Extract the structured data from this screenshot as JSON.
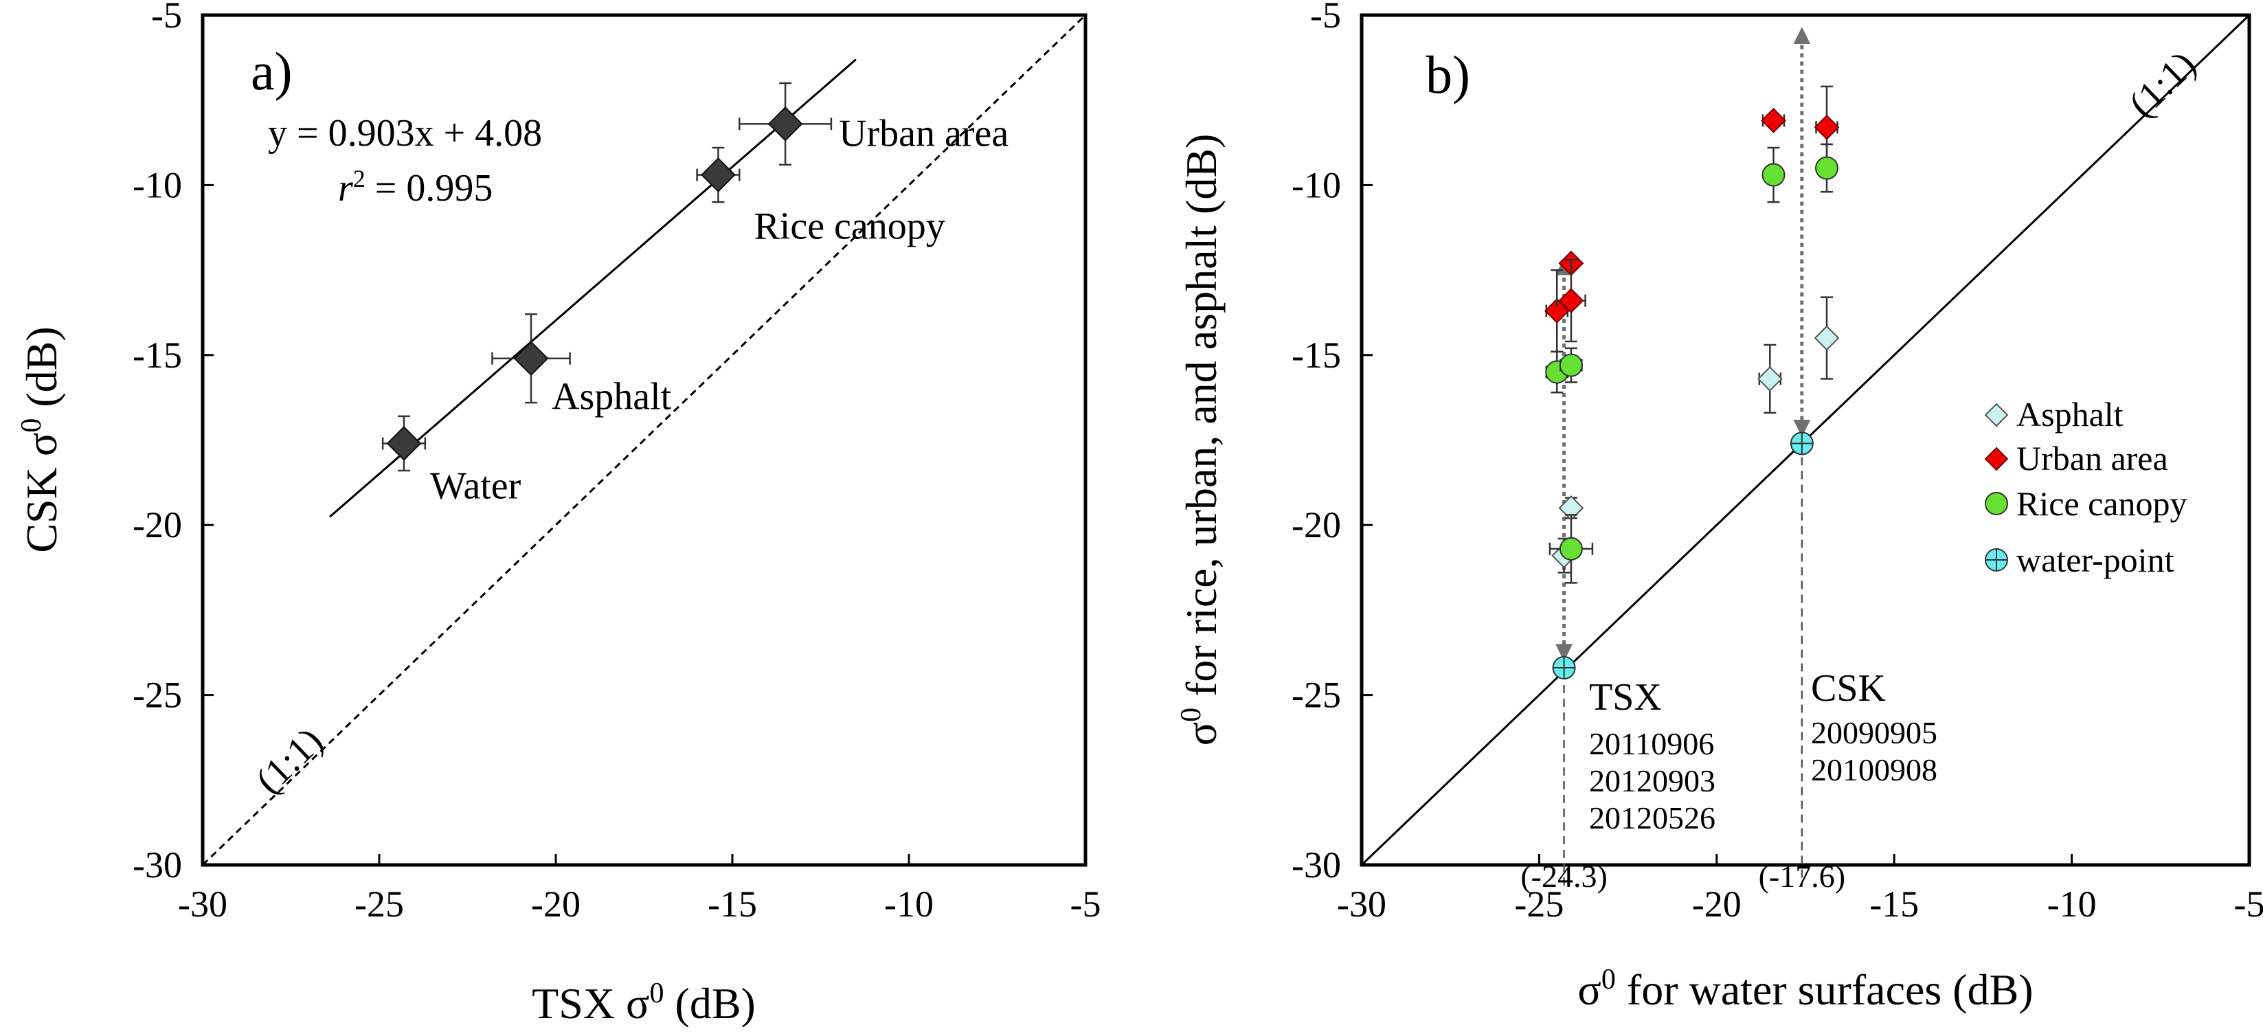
{
  "chart_data": [
    {
      "type": "scatter",
      "panel_label": "a)",
      "xlabel_main": "TSX σ",
      "xlabel_sup": "0",
      "xlabel_unit": " (dB)",
      "ylabel_main": "CSK σ",
      "ylabel_sup": "0",
      "ylabel_unit": "  (dB)",
      "xlim": [
        -30,
        -5
      ],
      "ylim": [
        -30,
        -5
      ],
      "xticks": [
        -30,
        -25,
        -20,
        -15,
        -10,
        -5
      ],
      "yticks": [
        -30,
        -25,
        -20,
        -15,
        -10,
        -5
      ],
      "xtick_labels": [
        "-30",
        "-25",
        "-20",
        "-15",
        "-10",
        "-5"
      ],
      "ytick_labels": [
        "-30",
        "-25",
        "-20",
        "-15",
        "-10",
        "-5"
      ],
      "points": [
        {
          "label": "Water",
          "x": -24.3,
          "y": -17.6,
          "xerr": 0.6,
          "yerr": 0.8
        },
        {
          "label": "Asphalt",
          "x": -20.7,
          "y": -15.1,
          "xerr": 1.1,
          "yerr": 1.3
        },
        {
          "label": "Rice canopy",
          "x": -15.4,
          "y": -9.7,
          "xerr": 0.6,
          "yerr": 0.8
        },
        {
          "label": "Urban area",
          "x": -13.5,
          "y": -8.2,
          "xerr": 1.3,
          "yerr": 1.2
        }
      ],
      "regression": {
        "slope": 0.903,
        "intercept": 4.08,
        "x_from": -26.4,
        "x_to": -11.5
      },
      "equation_text": "y = 0.903x + 4.08",
      "r2_var": "r",
      "r2_sup": "2",
      "r2_rest": " = 0.995",
      "one_to_one_label": "(1:1)",
      "grid": false
    },
    {
      "type": "scatter",
      "panel_label": "b)",
      "xlabel_main": "σ",
      "xlabel_sup": "0",
      "xlabel_unit": " for water surfaces (dB)",
      "ylabel_main": "σ",
      "ylabel_sup": "0",
      "ylabel_unit": " for rice, urban, and asphalt (dB)",
      "xlim": [
        -30,
        -5
      ],
      "ylim": [
        -30,
        -5
      ],
      "xticks": [
        -30,
        -25,
        -20,
        -15,
        -10,
        -5
      ],
      "yticks": [
        -30,
        -25,
        -20,
        -15,
        -10,
        -5
      ],
      "xtick_labels": [
        "-30",
        "-25",
        "-20",
        "-15",
        "-10",
        "-5"
      ],
      "ytick_labels": [
        "-30",
        "-25",
        "-20",
        "-15",
        "-10",
        "-5"
      ],
      "legend_position": "right",
      "series": [
        {
          "name": "Asphalt",
          "marker": "diamond",
          "color": "#ccf2f2",
          "points": [
            {
              "x": -24.3,
              "y": -20.9,
              "yerr": 0.5
            },
            {
              "x": -24.1,
              "y": -19.5,
              "yerr": 0.3
            },
            {
              "x": -18.5,
              "y": -15.7,
              "xerr": 0.3,
              "yerr": 1.0
            },
            {
              "x": -16.9,
              "y": -14.5,
              "yerr": 1.2
            }
          ]
        },
        {
          "name": "Urban area",
          "marker": "diamond",
          "color": "#ee0000",
          "points": [
            {
              "x": -24.5,
              "y": -13.7,
              "xerr": 0.3,
              "yerr": 1.2
            },
            {
              "x": -24.1,
              "y": -12.3
            },
            {
              "x": -24.1,
              "y": -13.4,
              "xerr": 0.4,
              "yerr": 1.2
            },
            {
              "x": -18.4,
              "y": -8.1,
              "xerr": 0.3
            },
            {
              "x": -16.9,
              "y": -8.3,
              "xerr": 0.3,
              "yerr": 1.2
            }
          ]
        },
        {
          "name": "Rice canopy",
          "marker": "circle",
          "color": "#66e033",
          "points": [
            {
              "x": -24.5,
              "y": -15.5,
              "xerr": 0.3,
              "yerr": 0.6
            },
            {
              "x": -24.1,
              "y": -15.3,
              "xerr": 0.3,
              "yerr": 0.5
            },
            {
              "x": -24.1,
              "y": -20.7,
              "xerr": 0.6,
              "yerr": 1.0
            },
            {
              "x": -18.4,
              "y": -9.7,
              "yerr": 0.8
            },
            {
              "x": -16.9,
              "y": -9.5,
              "yerr": 0.7
            }
          ]
        },
        {
          "name": "water-point",
          "marker": "crosscircle",
          "color": "#66eeee",
          "points": [
            {
              "x": -24.3,
              "y": -24.2
            },
            {
              "x": -17.6,
              "y": -17.6
            }
          ]
        }
      ],
      "arrows": [
        {
          "x": -24.3,
          "y_from": -24.2,
          "y_to": -12.4
        },
        {
          "x": -17.6,
          "y_from": -17.6,
          "y_to": -5.6
        }
      ],
      "vlines": [
        {
          "x": -24.3,
          "label": "(-24.3)"
        },
        {
          "x": -17.6,
          "label": "(-17.6)"
        }
      ],
      "sensor_notes": [
        {
          "sensor": "TSX",
          "dates": [
            "20110906",
            "20120903",
            "20120526"
          ]
        },
        {
          "sensor": "CSK",
          "dates": [
            "20090905",
            "20100908"
          ]
        }
      ],
      "one_to_one_label": "(1:1)",
      "grid": false
    }
  ]
}
